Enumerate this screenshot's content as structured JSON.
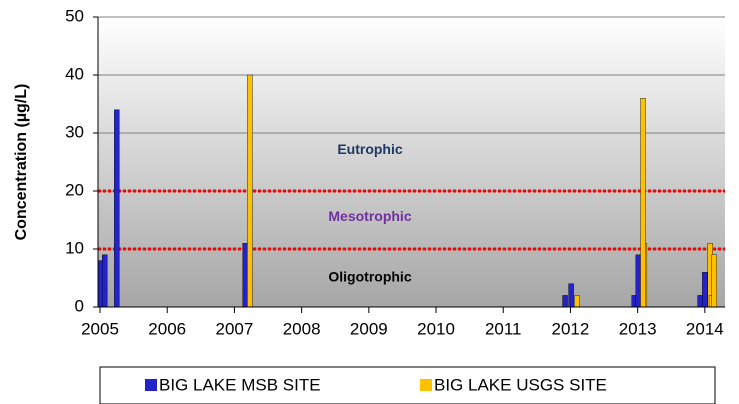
{
  "chart_data": {
    "type": "bar",
    "y_label": "Concentration (µg/L)",
    "xlim": [
      2004.97,
      2014.3
    ],
    "xticks": [
      2005,
      2006,
      2007,
      2008,
      2009,
      2010,
      2011,
      2012,
      2013,
      2014
    ],
    "ylim": [
      0,
      50
    ],
    "yticks": [
      0,
      10,
      20,
      30,
      40,
      50
    ],
    "grid": true,
    "thresholds": [
      10,
      20
    ],
    "threshold_color": "#ff0000",
    "zones": [
      {
        "label": "Eutrophic",
        "value": 27,
        "color": "#1f3864"
      },
      {
        "label": "Mesotrophic",
        "value": 15.5,
        "color": "#7030a0"
      },
      {
        "label": "Oligotrophic",
        "value": 5,
        "color": "#000000"
      }
    ],
    "series": [
      {
        "name": "BIG LAKE MSB SITE",
        "color": "#2323c8",
        "x": [
          2005.01,
          2005.07,
          2005.25,
          2007.16,
          2011.92,
          2012.01,
          2012.95,
          2013.01,
          2013.93,
          2014.0
        ],
        "values": [
          8,
          9,
          34,
          11,
          2,
          4,
          2,
          9,
          2,
          6
        ]
      },
      {
        "name": "BIG LAKE USGS SITE",
        "color": "#ffc000",
        "x": [
          2007.23,
          2012.1,
          2013.1,
          2013.08,
          2014.08,
          2014.1,
          2014.14
        ],
        "values": [
          40,
          2,
          11,
          36,
          11,
          2,
          9
        ]
      }
    ]
  }
}
